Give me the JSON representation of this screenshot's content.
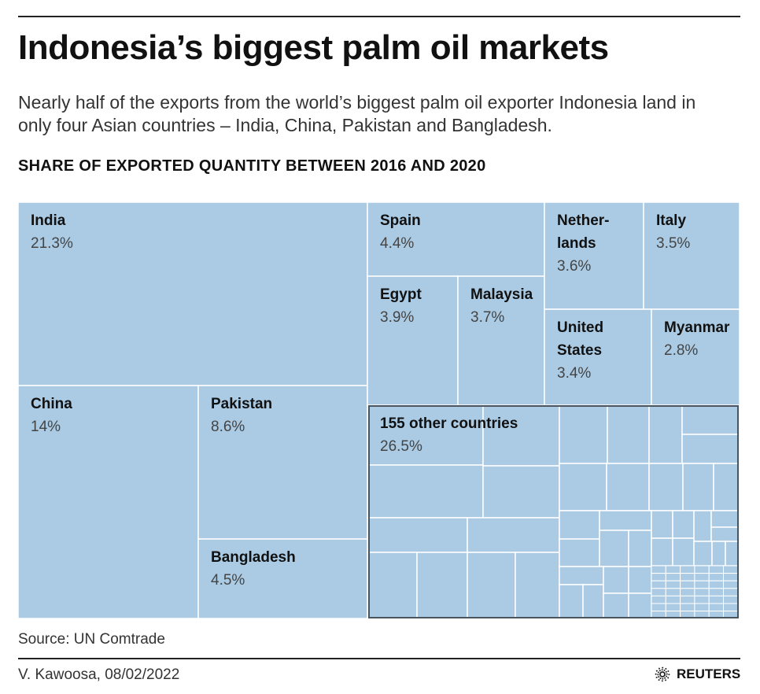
{
  "title": "Indonesia’s biggest palm oil markets",
  "subtitle": "Nearly half of the exports from the world’s biggest palm oil exporter Indonesia land in only four Asian countries – India, China, Pakistan and Bangladesh.",
  "chart_data": {
    "type": "treemap",
    "title": "SHARE OF EXPORTED QUANTITY BETWEEN 2016 AND 2020",
    "unit": "%",
    "fill_color": "#abcbe4",
    "items": [
      {
        "name": "India",
        "value": 21.3,
        "label": "21.3%"
      },
      {
        "name": "China",
        "value": 14,
        "label": "14%"
      },
      {
        "name": "Pakistan",
        "value": 8.6,
        "label": "8.6%"
      },
      {
        "name": "Bangladesh",
        "value": 4.5,
        "label": "4.5%"
      },
      {
        "name": "Spain",
        "value": 4.4,
        "label": "4.4%"
      },
      {
        "name": "Egypt",
        "value": 3.9,
        "label": "3.9%"
      },
      {
        "name": "Malaysia",
        "value": 3.7,
        "label": "3.7%"
      },
      {
        "name": "Nether-lands",
        "value": 3.6,
        "label": "3.6%"
      },
      {
        "name": "Italy",
        "value": 3.5,
        "label": "3.5%"
      },
      {
        "name": "United States",
        "value": 3.4,
        "label": "3.4%"
      },
      {
        "name": "Myanmar",
        "value": 2.8,
        "label": "2.8%"
      },
      {
        "name": "155 other countries",
        "value": 26.5,
        "label": "26.5%"
      }
    ]
  },
  "footer": {
    "source": "Source: UN Comtrade",
    "byline": "V. Kawoosa, 08/02/2022",
    "logo": "REUTERS"
  }
}
